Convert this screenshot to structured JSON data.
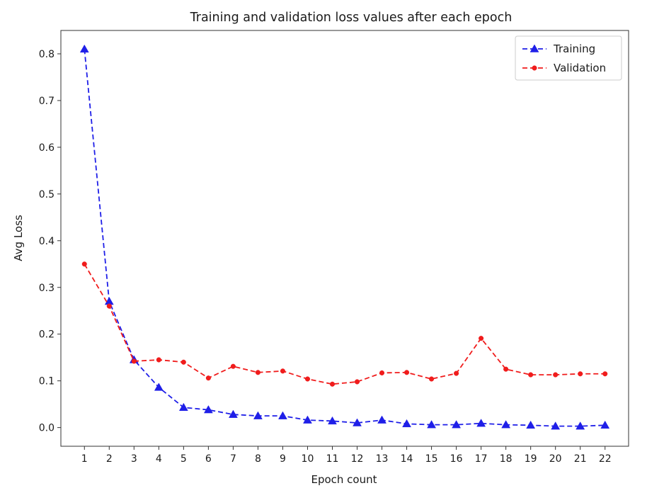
{
  "chart_data": {
    "type": "line",
    "title": "Training and validation loss values after each epoch",
    "xlabel": "Epoch count",
    "ylabel": "Avg Loss",
    "x": [
      1,
      2,
      3,
      4,
      5,
      6,
      7,
      8,
      9,
      10,
      11,
      12,
      13,
      14,
      15,
      16,
      17,
      18,
      19,
      20,
      21,
      22
    ],
    "x_ticks": [
      "1",
      "2",
      "3",
      "4",
      "5",
      "6",
      "7",
      "8",
      "9",
      "10",
      "11",
      "12",
      "13",
      "14",
      "15",
      "16",
      "17",
      "18",
      "19",
      "20",
      "21",
      "22"
    ],
    "y_ticks": [
      {
        "value": 0.0,
        "label": "0.0"
      },
      {
        "value": 0.1,
        "label": "0.1"
      },
      {
        "value": 0.2,
        "label": "0.2"
      },
      {
        "value": 0.3,
        "label": "0.3"
      },
      {
        "value": 0.4,
        "label": "0.4"
      },
      {
        "value": 0.5,
        "label": "0.5"
      },
      {
        "value": 0.6,
        "label": "0.6"
      },
      {
        "value": 0.7,
        "label": "0.7"
      },
      {
        "value": 0.8,
        "label": "0.8"
      }
    ],
    "xlim": [
      0.05,
      22.95
    ],
    "ylim": [
      -0.04,
      0.85
    ],
    "grid": false,
    "legend_position": "top-right",
    "series": [
      {
        "name": "Training",
        "color": "#1f1fe8",
        "line_style": "dashed",
        "marker": "triangle",
        "values": [
          0.81,
          0.27,
          0.145,
          0.086,
          0.043,
          0.038,
          0.028,
          0.025,
          0.025,
          0.016,
          0.014,
          0.01,
          0.016,
          0.008,
          0.006,
          0.006,
          0.009,
          0.006,
          0.005,
          0.003,
          0.003,
          0.005
        ]
      },
      {
        "name": "Validation",
        "color": "#f01c1c",
        "line_style": "dashed",
        "marker": "circle",
        "values": [
          0.35,
          0.26,
          0.142,
          0.145,
          0.14,
          0.106,
          0.131,
          0.118,
          0.121,
          0.104,
          0.093,
          0.098,
          0.117,
          0.118,
          0.104,
          0.116,
          0.191,
          0.125,
          0.113,
          0.113,
          0.115,
          0.115
        ]
      }
    ]
  }
}
